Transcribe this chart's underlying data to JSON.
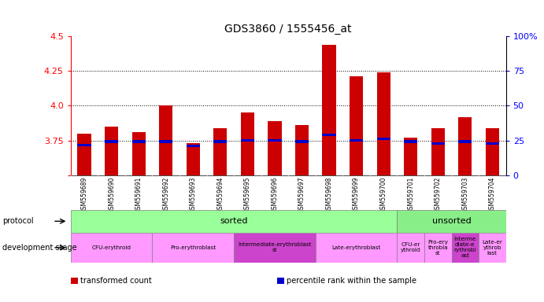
{
  "title": "GDS3860 / 1555456_at",
  "samples": [
    "GSM559689",
    "GSM559690",
    "GSM559691",
    "GSM559692",
    "GSM559693",
    "GSM559694",
    "GSM559695",
    "GSM559696",
    "GSM559697",
    "GSM559698",
    "GSM559699",
    "GSM559700",
    "GSM559701",
    "GSM559702",
    "GSM559703",
    "GSM559704"
  ],
  "bar_values": [
    3.8,
    3.85,
    3.81,
    4.0,
    3.73,
    3.84,
    3.95,
    3.89,
    3.86,
    4.44,
    4.21,
    4.24,
    3.77,
    3.84,
    3.92,
    3.84
  ],
  "percentile_values": [
    3.715,
    3.742,
    3.742,
    3.742,
    3.71,
    3.742,
    3.752,
    3.752,
    3.742,
    3.79,
    3.752,
    3.762,
    3.742,
    3.73,
    3.742,
    3.73
  ],
  "ylim_left": [
    3.5,
    4.5
  ],
  "ylim_right": [
    0,
    100
  ],
  "yticks_left": [
    3.5,
    3.75,
    4.0,
    4.25,
    4.5
  ],
  "yticks_right": [
    0,
    25,
    50,
    75,
    100
  ],
  "bar_color": "#cc0000",
  "percentile_color": "#0000cc",
  "bar_bottom": 3.5,
  "dev_stage_groups": [
    {
      "label": "CFU-erythroid",
      "start": 0,
      "end": 3,
      "color": "#ff99ff"
    },
    {
      "label": "Pro-erythroblast",
      "start": 3,
      "end": 6,
      "color": "#ff99ff"
    },
    {
      "label": "Intermediate-erythroblast\nst",
      "start": 6,
      "end": 9,
      "color": "#ee55ee"
    },
    {
      "label": "Late-erythroblast",
      "start": 9,
      "end": 12,
      "color": "#ff99ff"
    },
    {
      "label": "CFU-er\nythroid",
      "start": 12,
      "end": 13,
      "color": "#ff99ff"
    },
    {
      "label": "Pro-ery\nthrobla\nst",
      "start": 13,
      "end": 14,
      "color": "#ff99ff"
    },
    {
      "label": "Interme\ndiate-e\nrythrobl\nast",
      "start": 14,
      "end": 15,
      "color": "#ee55ee"
    },
    {
      "label": "Late-er\nythrob\nlast",
      "start": 15,
      "end": 16,
      "color": "#ff99ff"
    }
  ],
  "legend": [
    {
      "label": "transformed count",
      "color": "#cc0000"
    },
    {
      "label": "percentile rank within the sample",
      "color": "#0000cc"
    }
  ]
}
